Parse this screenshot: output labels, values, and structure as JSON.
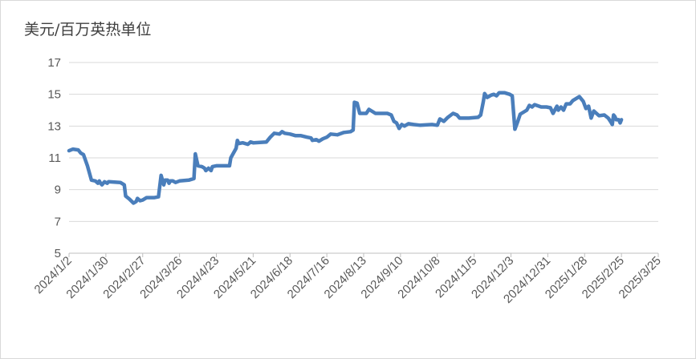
{
  "chart_data": {
    "type": "line",
    "ylabel": "美元/百万英热单位",
    "ylim": [
      5,
      17
    ],
    "yticks": [
      5,
      7,
      9,
      11,
      13,
      15,
      17
    ],
    "xlim": [
      "2024-01-02",
      "2025-03-25"
    ],
    "xticks": [
      "2024/1/2",
      "2024/1/30",
      "2024/2/27",
      "2024/3/26",
      "2024/4/23",
      "2024/5/21",
      "2024/6/18",
      "2024/7/16",
      "2024/8/13",
      "2024/9/10",
      "2024/10/8",
      "2024/11/5",
      "2024/12/3",
      "2024/12/31",
      "2025/1/28",
      "2025/2/25",
      "2025/3/25"
    ],
    "grid": "horizontal",
    "legend": "none",
    "color": "#4a7ebb",
    "series": [
      {
        "points": [
          [
            "2024-01-02",
            11.45
          ],
          [
            "2024-01-05",
            11.55
          ],
          [
            "2024-01-09",
            11.5
          ],
          [
            "2024-01-11",
            11.3
          ],
          [
            "2024-01-13",
            11.2
          ],
          [
            "2024-01-16",
            10.5
          ],
          [
            "2024-01-19",
            9.6
          ],
          [
            "2024-01-22",
            9.55
          ],
          [
            "2024-01-24",
            9.4
          ],
          [
            "2024-01-25",
            9.55
          ],
          [
            "2024-01-26",
            9.4
          ],
          [
            "2024-01-27",
            9.3
          ],
          [
            "2024-01-29",
            9.5
          ],
          [
            "2024-01-31",
            9.4
          ],
          [
            "2024-02-01",
            9.5
          ],
          [
            "2024-02-10",
            9.45
          ],
          [
            "2024-02-13",
            9.3
          ],
          [
            "2024-02-14",
            8.6
          ],
          [
            "2024-02-17",
            8.4
          ],
          [
            "2024-02-20",
            8.15
          ],
          [
            "2024-02-22",
            8.25
          ],
          [
            "2024-02-23",
            8.45
          ],
          [
            "2024-02-25",
            8.3
          ],
          [
            "2024-02-27",
            8.35
          ],
          [
            "2024-03-01",
            8.5
          ],
          [
            "2024-03-07",
            8.5
          ],
          [
            "2024-03-10",
            8.55
          ],
          [
            "2024-03-12",
            9.9
          ],
          [
            "2024-03-14",
            9.3
          ],
          [
            "2024-03-15",
            9.6
          ],
          [
            "2024-03-17",
            9.6
          ],
          [
            "2024-03-18",
            9.4
          ],
          [
            "2024-03-19",
            9.55
          ],
          [
            "2024-03-21",
            9.55
          ],
          [
            "2024-03-23",
            9.45
          ],
          [
            "2024-03-26",
            9.55
          ],
          [
            "2024-04-02",
            9.6
          ],
          [
            "2024-04-06",
            9.7
          ],
          [
            "2024-04-07",
            11.25
          ],
          [
            "2024-04-09",
            10.5
          ],
          [
            "2024-04-12",
            10.45
          ],
          [
            "2024-04-14",
            10.35
          ],
          [
            "2024-04-15",
            10.2
          ],
          [
            "2024-04-17",
            10.35
          ],
          [
            "2024-04-19",
            10.2
          ],
          [
            "2024-04-20",
            10.45
          ],
          [
            "2024-04-23",
            10.5
          ],
          [
            "2024-05-03",
            10.5
          ],
          [
            "2024-05-04",
            11.0
          ],
          [
            "2024-05-08",
            11.6
          ],
          [
            "2024-05-09",
            12.1
          ],
          [
            "2024-05-10",
            11.9
          ],
          [
            "2024-05-13",
            11.95
          ],
          [
            "2024-05-17",
            11.85
          ],
          [
            "2024-05-19",
            12.0
          ],
          [
            "2024-05-21",
            11.95
          ],
          [
            "2024-05-31",
            12.0
          ],
          [
            "2024-06-03",
            12.3
          ],
          [
            "2024-06-06",
            12.55
          ],
          [
            "2024-06-10",
            12.5
          ],
          [
            "2024-06-12",
            12.65
          ],
          [
            "2024-06-14",
            12.55
          ],
          [
            "2024-06-18",
            12.5
          ],
          [
            "2024-06-22",
            12.4
          ],
          [
            "2024-06-26",
            12.4
          ],
          [
            "2024-07-01",
            12.3
          ],
          [
            "2024-07-04",
            12.25
          ],
          [
            "2024-07-05",
            12.1
          ],
          [
            "2024-07-08",
            12.15
          ],
          [
            "2024-07-10",
            12.05
          ],
          [
            "2024-07-13",
            12.2
          ],
          [
            "2024-07-16",
            12.3
          ],
          [
            "2024-07-19",
            12.5
          ],
          [
            "2024-07-24",
            12.45
          ],
          [
            "2024-07-29",
            12.6
          ],
          [
            "2024-08-03",
            12.65
          ],
          [
            "2024-08-05",
            12.75
          ],
          [
            "2024-08-06",
            14.5
          ],
          [
            "2024-08-08",
            14.45
          ],
          [
            "2024-08-10",
            13.8
          ],
          [
            "2024-08-15",
            13.8
          ],
          [
            "2024-08-17",
            14.05
          ],
          [
            "2024-08-20",
            13.9
          ],
          [
            "2024-08-22",
            13.8
          ],
          [
            "2024-08-31",
            13.8
          ],
          [
            "2024-09-03",
            13.7
          ],
          [
            "2024-09-05",
            13.3
          ],
          [
            "2024-09-07",
            13.2
          ],
          [
            "2024-09-09",
            12.85
          ],
          [
            "2024-09-11",
            13.1
          ],
          [
            "2024-09-13",
            13.0
          ],
          [
            "2024-09-16",
            13.15
          ],
          [
            "2024-09-20",
            13.1
          ],
          [
            "2024-09-25",
            13.05
          ],
          [
            "2024-10-04",
            13.1
          ],
          [
            "2024-10-08",
            13.05
          ],
          [
            "2024-10-10",
            13.45
          ],
          [
            "2024-10-13",
            13.3
          ],
          [
            "2024-10-16",
            13.55
          ],
          [
            "2024-10-20",
            13.8
          ],
          [
            "2024-10-23",
            13.7
          ],
          [
            "2024-10-25",
            13.5
          ],
          [
            "2024-11-01",
            13.5
          ],
          [
            "2024-11-08",
            13.55
          ],
          [
            "2024-11-10",
            13.7
          ],
          [
            "2024-11-12",
            14.55
          ],
          [
            "2024-11-13",
            15.05
          ],
          [
            "2024-11-15",
            14.8
          ],
          [
            "2024-11-18",
            14.95
          ],
          [
            "2024-11-20",
            15.0
          ],
          [
            "2024-11-22",
            14.9
          ],
          [
            "2024-11-24",
            15.1
          ],
          [
            "2024-11-28",
            15.1
          ],
          [
            "2024-12-02",
            15.0
          ],
          [
            "2024-12-04",
            14.9
          ],
          [
            "2024-12-06",
            12.8
          ],
          [
            "2024-12-08",
            13.25
          ],
          [
            "2024-12-10",
            13.75
          ],
          [
            "2024-12-13",
            13.9
          ],
          [
            "2024-12-15",
            14.0
          ],
          [
            "2024-12-17",
            14.3
          ],
          [
            "2024-12-19",
            14.2
          ],
          [
            "2024-12-21",
            14.35
          ],
          [
            "2024-12-26",
            14.2
          ],
          [
            "2024-12-30",
            14.2
          ],
          [
            "2025-01-02",
            14.15
          ],
          [
            "2025-01-04",
            13.8
          ],
          [
            "2025-01-07",
            14.25
          ],
          [
            "2025-01-08",
            14.0
          ],
          [
            "2025-01-10",
            14.2
          ],
          [
            "2025-01-12",
            14.0
          ],
          [
            "2025-01-14",
            14.4
          ],
          [
            "2025-01-17",
            14.4
          ],
          [
            "2025-01-19",
            14.6
          ],
          [
            "2025-01-22",
            14.75
          ],
          [
            "2025-01-24",
            14.85
          ],
          [
            "2025-01-27",
            14.55
          ],
          [
            "2025-01-29",
            14.1
          ],
          [
            "2025-01-31",
            14.25
          ],
          [
            "2025-02-02",
            13.5
          ],
          [
            "2025-02-04",
            13.95
          ],
          [
            "2025-02-06",
            13.8
          ],
          [
            "2025-02-08",
            13.65
          ],
          [
            "2025-02-12",
            13.7
          ],
          [
            "2025-02-15",
            13.5
          ],
          [
            "2025-02-17",
            13.25
          ],
          [
            "2025-02-18",
            13.1
          ],
          [
            "2025-02-19",
            13.7
          ],
          [
            "2025-02-20",
            13.6
          ],
          [
            "2025-02-21",
            13.4
          ],
          [
            "2025-02-23",
            13.4
          ],
          [
            "2025-02-24",
            13.2
          ],
          [
            "2025-02-25",
            13.4
          ]
        ]
      }
    ]
  }
}
